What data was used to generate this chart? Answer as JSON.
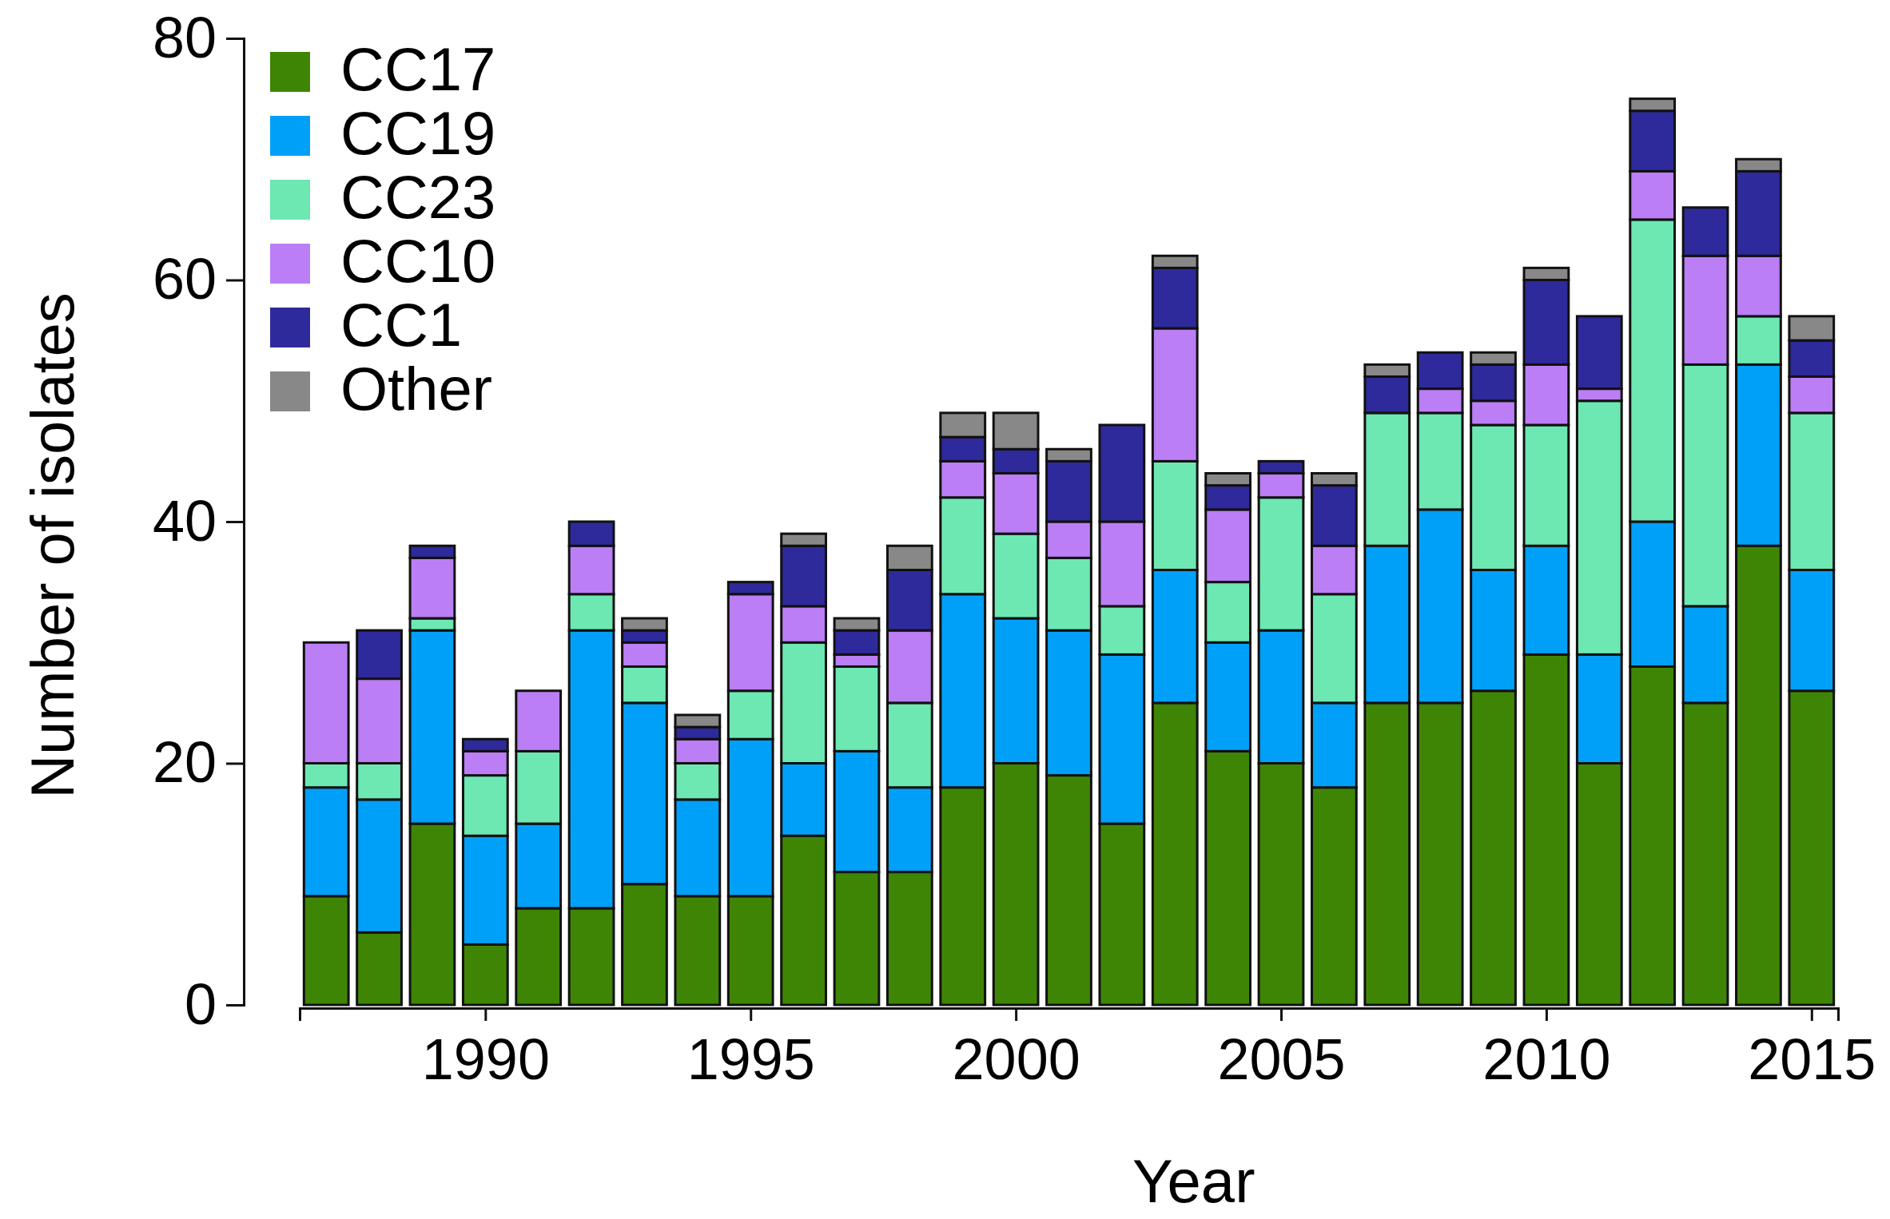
{
  "chart_data": {
    "type": "bar",
    "stacked": true,
    "xlabel": "Year",
    "ylabel": "Number of isolates",
    "x": [
      1987,
      1988,
      1989,
      1990,
      1991,
      1992,
      1993,
      1994,
      1995,
      1996,
      1997,
      1998,
      1999,
      2000,
      2001,
      2002,
      2003,
      2004,
      2005,
      2006,
      2007,
      2008,
      2009,
      2010,
      2011,
      2012,
      2013,
      2014,
      2015
    ],
    "xlim": [
      1986.5,
      2015.5
    ],
    "xticks": [
      1990,
      1995,
      2000,
      2005,
      2010,
      2015
    ],
    "ylim": [
      0,
      80
    ],
    "yticks": [
      0,
      20,
      40,
      60,
      80
    ],
    "grid": false,
    "legend": "top left",
    "series": [
      {
        "name": "CC17",
        "color": "#3f8505",
        "values": [
          9,
          6,
          15,
          5,
          8,
          8,
          10,
          9,
          9,
          14,
          11,
          11,
          18,
          20,
          19,
          15,
          25,
          21,
          20,
          18,
          25,
          25,
          26,
          29,
          20,
          28,
          25,
          38,
          26
        ]
      },
      {
        "name": "CC19",
        "color": "#00a0f8",
        "values": [
          9,
          11,
          16,
          9,
          7,
          23,
          15,
          8,
          13,
          6,
          10,
          7,
          16,
          12,
          12,
          14,
          11,
          9,
          11,
          7,
          13,
          16,
          10,
          9,
          9,
          12,
          8,
          15,
          10
        ]
      },
      {
        "name": "CC23",
        "color": "#6de8b3",
        "values": [
          2,
          3,
          1,
          5,
          6,
          3,
          3,
          3,
          4,
          10,
          7,
          7,
          8,
          7,
          6,
          4,
          9,
          5,
          11,
          9,
          11,
          8,
          12,
          10,
          21,
          25,
          20,
          4,
          13
        ]
      },
      {
        "name": "CC10",
        "color": "#bb7ef5",
        "values": [
          10,
          7,
          5,
          2,
          5,
          4,
          2,
          2,
          8,
          3,
          1,
          6,
          3,
          5,
          3,
          7,
          11,
          6,
          2,
          4,
          0,
          2,
          2,
          5,
          1,
          4,
          9,
          5,
          3
        ]
      },
      {
        "name": "CC1",
        "color": "#2e2a9b",
        "values": [
          0,
          4,
          1,
          1,
          0,
          2,
          1,
          1,
          1,
          5,
          2,
          5,
          2,
          2,
          5,
          8,
          5,
          2,
          1,
          5,
          3,
          3,
          3,
          7,
          6,
          5,
          4,
          7,
          3
        ]
      },
      {
        "name": "Other",
        "color": "#888888",
        "values": [
          0,
          0,
          0,
          0,
          0,
          0,
          1,
          1,
          0,
          1,
          1,
          2,
          2,
          3,
          1,
          0,
          1,
          1,
          0,
          1,
          1,
          0,
          1,
          1,
          0,
          1,
          0,
          1,
          2
        ]
      }
    ]
  }
}
